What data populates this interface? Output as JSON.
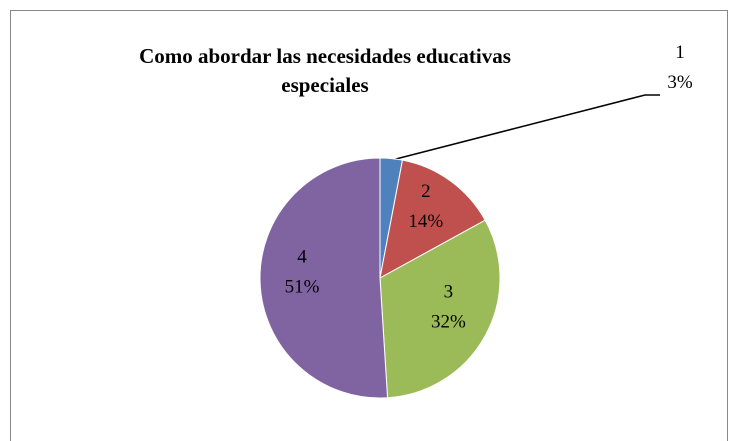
{
  "chart_data": {
    "type": "pie",
    "title": "Como abordar las necesidades educativas especiales",
    "categories": [
      "1",
      "2",
      "3",
      "4"
    ],
    "values": [
      3,
      14,
      32,
      51
    ],
    "value_labels": [
      "3%",
      "14%",
      "32%",
      "51%"
    ],
    "colors": [
      "#4f81bd",
      "#c0504d",
      "#9bbb59",
      "#8064a2"
    ]
  }
}
